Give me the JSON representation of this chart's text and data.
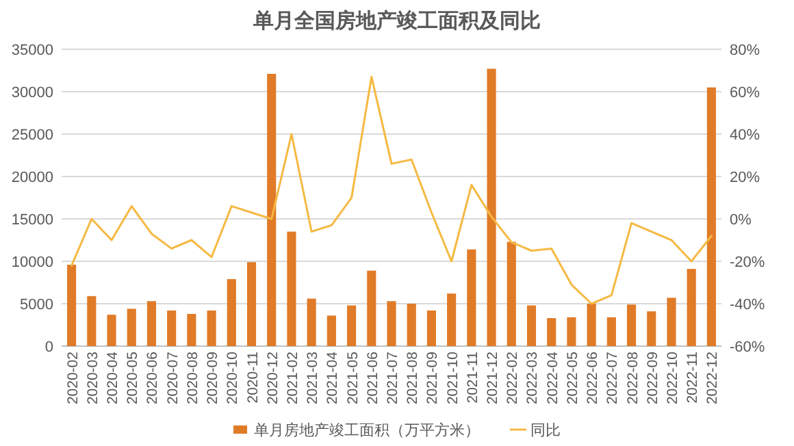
{
  "chart_data": {
    "type": "bar",
    "title": "单月全国房地产竣工面积及同比",
    "categories": [
      "2020-02",
      "2020-03",
      "2020-04",
      "2020-05",
      "2020-06",
      "2020-07",
      "2020-08",
      "2020-09",
      "2020-10",
      "2020-11",
      "2020-12",
      "2021-02",
      "2021-03",
      "2021-04",
      "2021-05",
      "2021-06",
      "2021-07",
      "2021-08",
      "2021-09",
      "2021-10",
      "2021-11",
      "2021-12",
      "2022-02",
      "2022-03",
      "2022-04",
      "2022-05",
      "2022-06",
      "2022-07",
      "2022-08",
      "2022-09",
      "2022-10",
      "2022-11",
      "2022-12"
    ],
    "series": [
      {
        "name": "单月房地产竣工面积（万平方米）",
        "color": "#e07b28",
        "values": [
          9600,
          5900,
          3700,
          4400,
          5300,
          4200,
          3800,
          4200,
          7900,
          9900,
          32100,
          13500,
          5600,
          3600,
          4800,
          8900,
          5300,
          5000,
          4200,
          6200,
          11400,
          32700,
          12300,
          4800,
          3300,
          3400,
          5000,
          3400,
          4900,
          4100,
          5700,
          9100,
          30500
        ]
      },
      {
        "name": "同比",
        "type": "line",
        "axis": "y2",
        "color": "#f5b942",
        "values": [
          -22,
          0,
          -10,
          6,
          -7,
          -14,
          -10,
          -18,
          6,
          3,
          0,
          40,
          -6,
          -3,
          10,
          67,
          26,
          28,
          3,
          -20,
          16,
          1,
          -11,
          -15,
          -14,
          -31,
          -40,
          -36,
          -2,
          -6,
          -10,
          -20,
          -8
        ]
      }
    ],
    "ylim": [
      0,
      35000
    ],
    "yticks": [
      0,
      5000,
      10000,
      15000,
      20000,
      25000,
      30000,
      35000
    ],
    "y2lim": [
      -60,
      80
    ],
    "y2ticks": [
      {
        "value": -60,
        "label": "-60%"
      },
      {
        "value": -40,
        "label": "-40%"
      },
      {
        "value": -20,
        "label": "-20%"
      },
      {
        "value": 0,
        "label": "0%"
      },
      {
        "value": 20,
        "label": "20%"
      },
      {
        "value": 40,
        "label": "40%"
      },
      {
        "value": 60,
        "label": "60%"
      },
      {
        "value": 80,
        "label": "80%"
      }
    ],
    "grid": "y",
    "legend": "bottom",
    "marker": "none"
  }
}
